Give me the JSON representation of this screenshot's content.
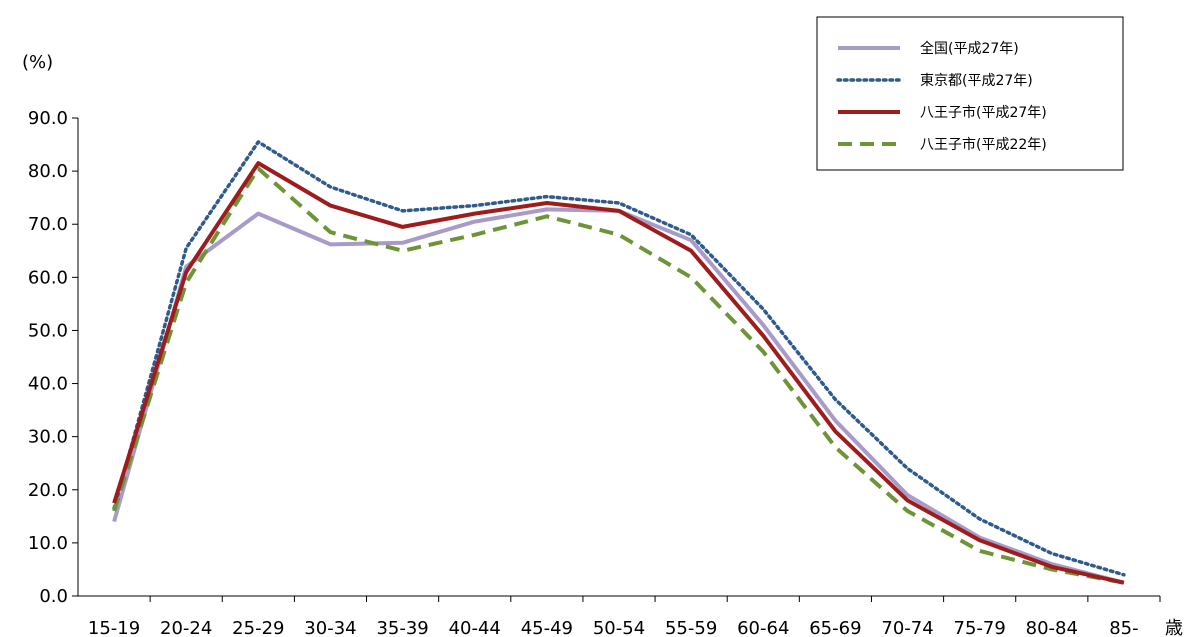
{
  "chart_data": {
    "type": "line",
    "y_unit_label": "(%)",
    "x_unit_label": "歳",
    "ylim": [
      0,
      90
    ],
    "y_ticks": [
      "0.0",
      "10.0",
      "20.0",
      "30.0",
      "40.0",
      "50.0",
      "60.0",
      "70.0",
      "80.0",
      "90.0"
    ],
    "categories": [
      "15-19",
      "20-24",
      "25-29",
      "30-34",
      "35-39",
      "40-44",
      "45-49",
      "50-54",
      "55-59",
      "60-64",
      "65-69",
      "70-74",
      "75-79",
      "80-84",
      "85-"
    ],
    "legend_position": "top-right",
    "grid": false,
    "series": [
      {
        "name": "全国(平成27年)",
        "color": "#a89bc8",
        "style": "solid",
        "values": [
          14.0,
          62.0,
          72.0,
          66.2,
          66.5,
          70.5,
          72.8,
          72.5,
          67.0,
          51.0,
          33.0,
          19.0,
          11.0,
          6.0,
          2.5
        ]
      },
      {
        "name": "東京都(平成27年)",
        "color": "#2e5a8c",
        "style": "dotted",
        "values": [
          16.5,
          65.5,
          85.5,
          77.0,
          72.5,
          73.5,
          75.2,
          74.0,
          68.0,
          54.0,
          37.0,
          24.0,
          14.5,
          8.0,
          4.0
        ]
      },
      {
        "name": "八王子市(平成27年)",
        "color": "#9e1c1c",
        "style": "solid",
        "values": [
          17.5,
          61.0,
          81.5,
          73.5,
          69.5,
          72.0,
          74.0,
          72.5,
          65.0,
          49.0,
          31.0,
          18.0,
          10.5,
          5.5,
          2.5
        ]
      },
      {
        "name": "八王子市(平成22年)",
        "color": "#6e9438",
        "style": "dashed",
        "values": [
          16.0,
          59.0,
          80.5,
          68.5,
          65.0,
          68.0,
          71.5,
          68.0,
          60.0,
          46.0,
          28.0,
          16.0,
          8.5,
          5.0,
          2.5
        ]
      }
    ]
  }
}
